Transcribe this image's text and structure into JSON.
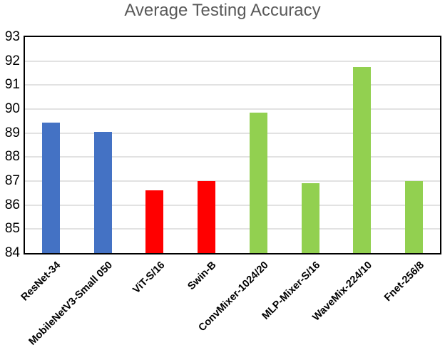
{
  "chart_data": {
    "type": "bar",
    "title": "Average Testing Accuracy",
    "title_color": "#595959",
    "categories": [
      "ResNet-34",
      "MobileNetV3-Small 050",
      "ViT-S/16",
      "Swin-B",
      "ConvMixer-1024/20",
      "MLP-Mixer-S/16",
      "WaveMix-224/10",
      "Fnet-256/8"
    ],
    "values": [
      89.45,
      89.05,
      86.6,
      87.0,
      89.85,
      86.9,
      91.75,
      87.0
    ],
    "bar_colors": [
      "#4472C4",
      "#4472C4",
      "#FF0000",
      "#FF0000",
      "#92D050",
      "#92D050",
      "#92D050",
      "#92D050"
    ],
    "xlabel": "",
    "ylabel": "",
    "ylim": [
      84,
      93
    ],
    "yticks": [
      84,
      85,
      86,
      87,
      88,
      89,
      90,
      91,
      92,
      93
    ],
    "grid": "horizontal",
    "gridline_color": "#E2E2E2",
    "plot_border_color": "#000000",
    "x_tick_rotation_deg": 45,
    "legend_position": "none"
  }
}
